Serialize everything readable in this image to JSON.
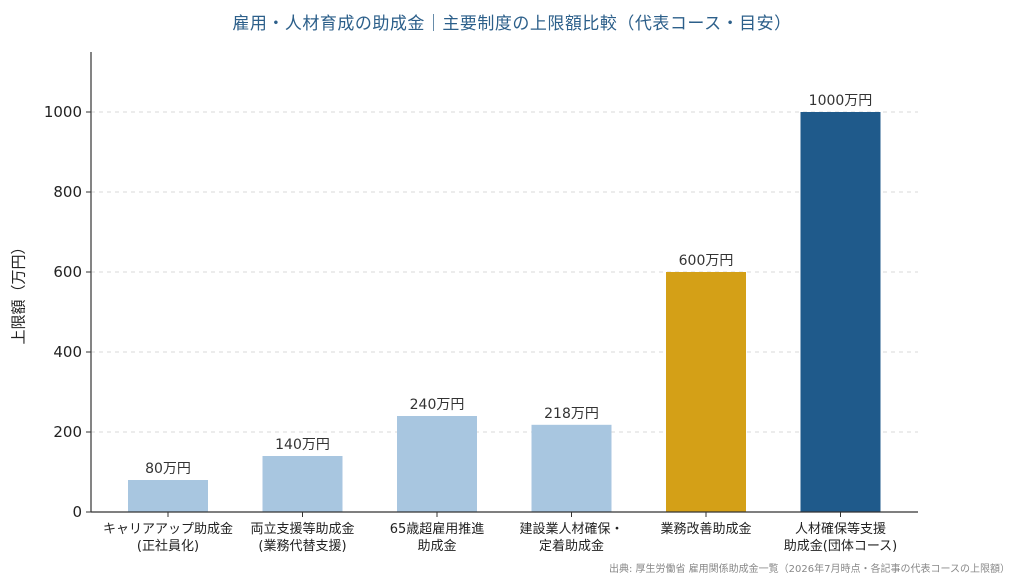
{
  "title": "雇用・人材育成の助成金｜主要制度の上限額比較（代表コース・目安）",
  "source": "出典: 厚生労働省 雇用関係助成金一覧（2026年7月時点・各記事の代表コースの上限額）",
  "chart_data": {
    "type": "bar",
    "ylabel": "上限額（万円）",
    "ylim": [
      0,
      1150
    ],
    "yticks": [
      0,
      200,
      400,
      600,
      800,
      1000
    ],
    "grid": true,
    "categories": [
      [
        "キャリアアップ助成金",
        "(正社員化)"
      ],
      [
        "両立支援等助成金",
        "(業務代替支援)"
      ],
      [
        "65歳超雇用推進",
        "助成金"
      ],
      [
        "建設業人材確保・",
        "定着助成金"
      ],
      [
        "業務改善助成金"
      ],
      [
        "人材確保等支援",
        "助成金(団体コース)"
      ]
    ],
    "values": [
      80,
      140,
      240,
      218,
      600,
      1000
    ],
    "data_labels": [
      "80万円",
      "140万円",
      "240万円",
      "218万円",
      "600万円",
      "1000万円"
    ],
    "colors": [
      "#a8c6e0",
      "#a8c6e0",
      "#a8c6e0",
      "#a8c6e0",
      "#d4a017",
      "#1f5a8b"
    ]
  }
}
